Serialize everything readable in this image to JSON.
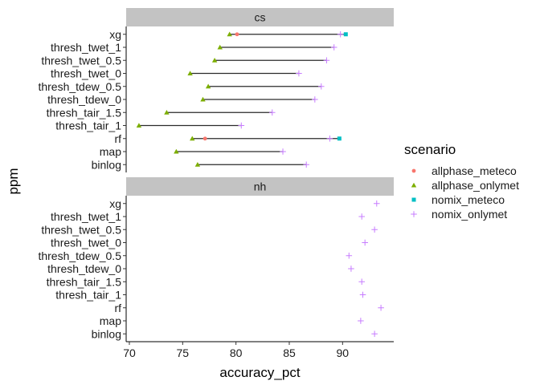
{
  "chart_data": {
    "type": "scatter",
    "xlabel": "accuracy_pct",
    "ylabel": "ppm",
    "xlim": [
      69.7,
      94.8
    ],
    "x_ticks": [
      70,
      75,
      80,
      85,
      90
    ],
    "categories": [
      "xg",
      "thresh_twet_1",
      "thresh_twet_0.5",
      "thresh_twet_0",
      "thresh_tdew_0.5",
      "thresh_tdew_0",
      "thresh_tair_1.5",
      "thresh_tair_1",
      "rf",
      "map",
      "binlog"
    ],
    "legend": {
      "title": "scenario",
      "position": "right",
      "entries": [
        {
          "name": "allphase_meteco",
          "color": "#F8766D",
          "shape": "circle"
        },
        {
          "name": "allphase_onlymet",
          "color": "#7CAE00",
          "shape": "triangle"
        },
        {
          "name": "nomix_meteco",
          "color": "#00BFC4",
          "shape": "square"
        },
        {
          "name": "nomix_onlymet",
          "color": "#C77CFF",
          "shape": "plus"
        }
      ]
    },
    "panels": [
      {
        "title": "cs",
        "ranges": [
          [
            79.4,
            90.3
          ],
          [
            78.5,
            89.2
          ],
          [
            78.0,
            88.5
          ],
          [
            75.7,
            85.9
          ],
          [
            77.4,
            88.0
          ],
          [
            76.9,
            87.4
          ],
          [
            73.5,
            83.4
          ],
          [
            70.9,
            80.5
          ],
          [
            75.9,
            89.7
          ],
          [
            74.4,
            84.4
          ],
          [
            76.4,
            86.6
          ]
        ],
        "series": [
          {
            "name": "allphase_meteco",
            "values": [
              80.1,
              null,
              null,
              null,
              null,
              null,
              null,
              null,
              77.1,
              null,
              null
            ]
          },
          {
            "name": "allphase_onlymet",
            "values": [
              79.4,
              78.5,
              78.0,
              75.7,
              77.4,
              76.9,
              73.5,
              70.9,
              75.9,
              74.4,
              76.4
            ]
          },
          {
            "name": "nomix_meteco",
            "values": [
              90.3,
              null,
              null,
              null,
              null,
              null,
              null,
              null,
              89.7,
              null,
              null
            ]
          },
          {
            "name": "nomix_onlymet",
            "values": [
              89.8,
              89.2,
              88.5,
              85.9,
              88.0,
              87.4,
              83.4,
              80.5,
              88.8,
              84.4,
              86.6
            ]
          }
        ]
      },
      {
        "title": "nh",
        "ranges": [],
        "series": [
          {
            "name": "nomix_onlymet",
            "values": [
              93.2,
              91.8,
              93.0,
              92.1,
              90.6,
              90.8,
              91.8,
              91.9,
              93.6,
              91.7,
              93.0
            ]
          }
        ]
      }
    ]
  }
}
